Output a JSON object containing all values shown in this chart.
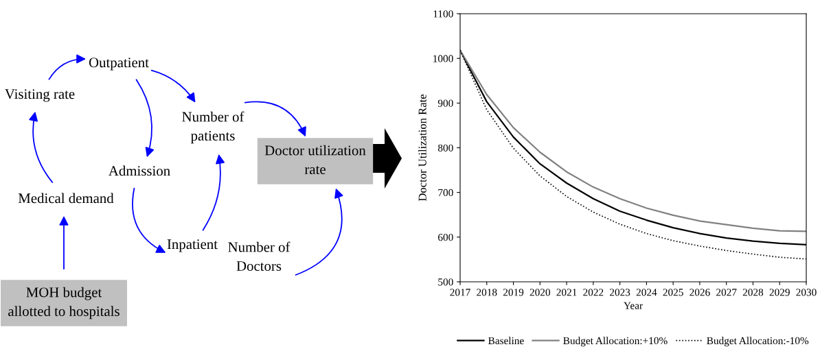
{
  "chart_data": [
    {
      "type": "other",
      "annotations": [
        "Outpatient",
        "Visiting rate",
        "Number of\npatients",
        "Doctor utilization\nrate",
        "Admission",
        "Medical demand",
        "Inpatient",
        "Number of\nDoctors",
        "MOH budget\nallotted to hospitals"
      ]
    },
    {
      "type": "line",
      "xlabel": "Year",
      "ylabel": "Doctor Utilization Rate",
      "x": [
        2017,
        2018,
        2019,
        2020,
        2021,
        2022,
        2023,
        2024,
        2025,
        2026,
        2027,
        2028,
        2029,
        2030
      ],
      "xlim": [
        2017,
        2030
      ],
      "xticks": [
        2017,
        2018,
        2019,
        2020,
        2021,
        2022,
        2023,
        2024,
        2025,
        2026,
        2027,
        2028,
        2029,
        2030
      ],
      "ylim": [
        500,
        1100
      ],
      "yticks": [
        500,
        600,
        700,
        800,
        900,
        1000,
        1100
      ],
      "grid": false,
      "legend": "bottom",
      "marker": "none",
      "series": [
        {
          "name": "Baseline",
          "color": "#000000",
          "line_style": "solid",
          "values": [
            1018,
            903,
            824,
            764,
            721,
            686,
            658,
            638,
            621,
            608,
            598,
            591,
            586,
            583
          ]
        },
        {
          "name": "Budget Allocation:+10%",
          "color": "#808080",
          "line_style": "solid",
          "values": [
            1018,
            919,
            845,
            790,
            746,
            712,
            686,
            665,
            649,
            636,
            628,
            620,
            614,
            613
          ]
        },
        {
          "name": "Budget Allocation:-10%",
          "color": "#000000",
          "line_style": "dotted",
          "values": [
            1018,
            885,
            799,
            737,
            691,
            656,
            629,
            608,
            592,
            580,
            570,
            562,
            555,
            551
          ]
        }
      ]
    }
  ]
}
